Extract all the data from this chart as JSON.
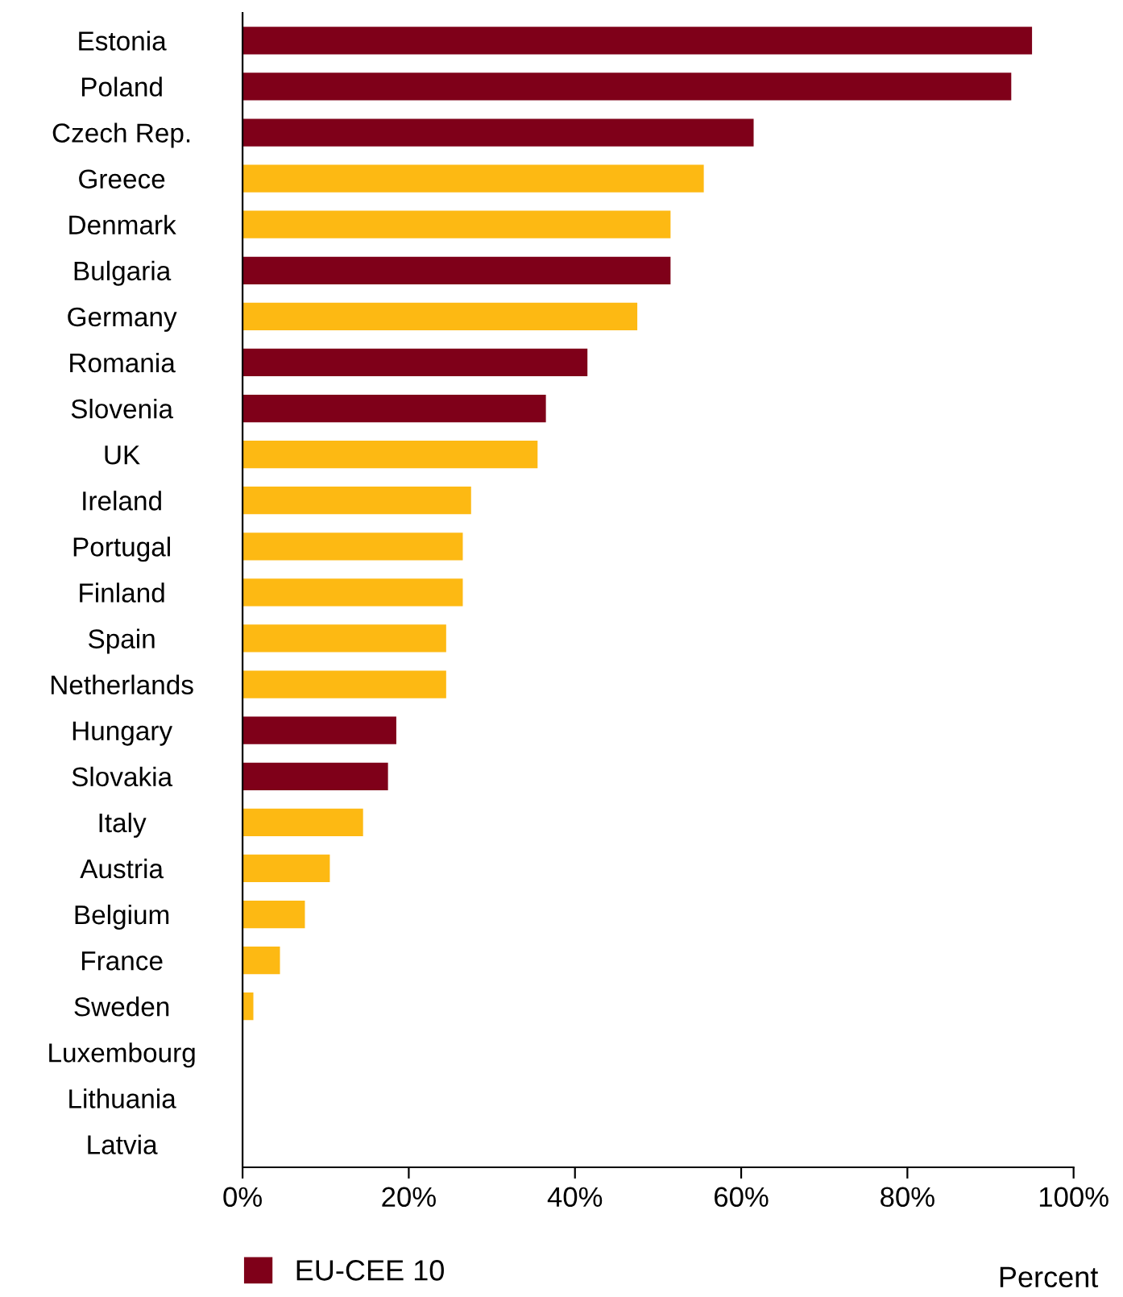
{
  "chart_data": {
    "type": "bar",
    "orientation": "horizontal",
    "xlabel": "Percent",
    "categories": [
      "Estonia",
      "Poland",
      "Czech Rep.",
      "Greece",
      "Denmark",
      "Bulgaria",
      "Germany",
      "Romania",
      "Slovenia",
      "UK",
      "Ireland",
      "Portugal",
      "Finland",
      "Spain",
      "Netherlands",
      "Hungary",
      "Slovakia",
      "Italy",
      "Austria",
      "Belgium",
      "France",
      "Sweden",
      "Luxembourg",
      "Lithuania",
      "Latvia"
    ],
    "series": [
      {
        "name": "EU-CEE 10",
        "color": "#7f0019",
        "values": [
          95,
          92.5,
          61.5,
          null,
          null,
          51.5,
          null,
          41.5,
          36.5,
          null,
          null,
          null,
          null,
          null,
          null,
          18.5,
          17.5,
          null,
          null,
          null,
          null,
          null,
          0,
          0,
          0
        ]
      },
      {
        "color": "#fdb913",
        "values": [
          null,
          null,
          null,
          55.5,
          51.5,
          null,
          47.5,
          null,
          null,
          35.5,
          27.5,
          26.5,
          26.5,
          24.5,
          24.5,
          null,
          null,
          14.5,
          10.5,
          7.5,
          4.5,
          1.3,
          null,
          null,
          null
        ]
      }
    ],
    "xlim": [
      0,
      100
    ],
    "xticks": [
      {
        "value": 0,
        "label": "0%"
      },
      {
        "value": 20,
        "label": "20%"
      },
      {
        "value": 40,
        "label": "40%"
      },
      {
        "value": 60,
        "label": "60%"
      },
      {
        "value": 80,
        "label": "80%"
      },
      {
        "value": 100,
        "label": "100%"
      }
    ],
    "grid": false,
    "legend": "bottom left"
  }
}
